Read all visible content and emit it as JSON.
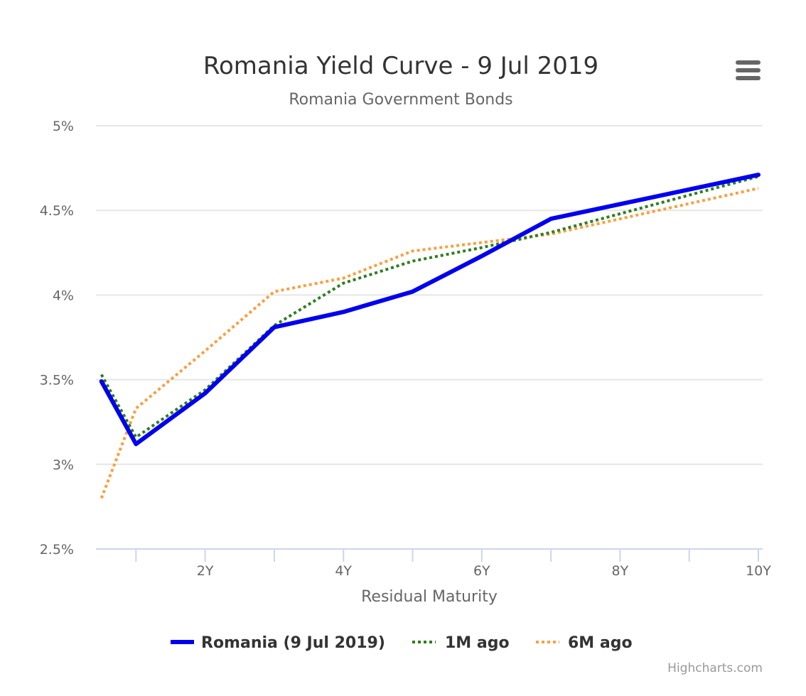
{
  "chart_data": {
    "type": "line",
    "title": "Romania Yield Curve - 9 Jul 2019",
    "subtitle": "Romania Government Bonds",
    "xlabel": "Residual Maturity",
    "ylabel": "",
    "x_ticks": [
      "2Y",
      "4Y",
      "6Y",
      "8Y",
      "10Y"
    ],
    "y_ticks": [
      "2.5%",
      "3%",
      "3.5%",
      "4%",
      "4.5%",
      "5%"
    ],
    "ylim": [
      2.5,
      5
    ],
    "x_unit": "years",
    "grid": true,
    "legend_position": "bottom-center",
    "series": [
      {
        "name": "Romania (9 Jul 2019)",
        "color": "#0000ee",
        "style": "solid",
        "x": [
          0.5,
          1,
          2,
          3,
          4,
          5,
          6,
          7,
          10
        ],
        "values": [
          3.49,
          3.12,
          3.42,
          3.81,
          3.9,
          4.02,
          4.23,
          4.45,
          4.71
        ]
      },
      {
        "name": "1M ago",
        "color": "#2e7d1f",
        "style": "dotted",
        "x": [
          0.5,
          1,
          2,
          3,
          4,
          5,
          6,
          7,
          10
        ],
        "values": [
          3.53,
          3.16,
          3.44,
          3.82,
          4.07,
          4.2,
          4.28,
          4.37,
          4.7
        ]
      },
      {
        "name": "6M ago",
        "color": "#f7a040",
        "style": "dotted",
        "x": [
          0.5,
          1,
          2,
          3,
          4,
          5,
          6,
          7,
          10
        ],
        "values": [
          2.8,
          3.33,
          3.67,
          4.02,
          4.1,
          4.26,
          4.31,
          4.36,
          4.63
        ]
      }
    ]
  },
  "credits": "Highcharts.com",
  "menu": {
    "icon": "hamburger-menu-icon"
  }
}
